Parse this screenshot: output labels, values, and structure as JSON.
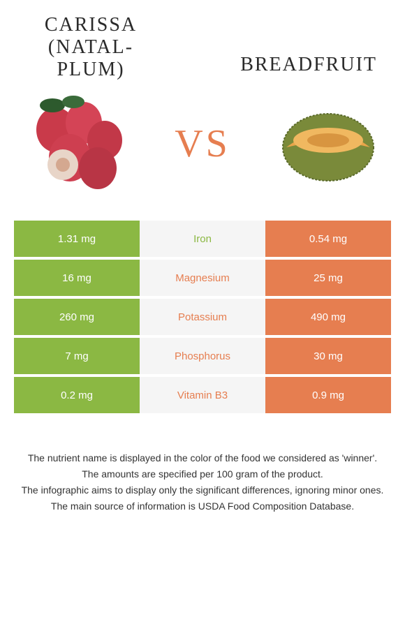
{
  "header": {
    "left_title": "CARISSA (NATAL-PLUM)",
    "right_title": "BREADFRUIT",
    "vs": "VS"
  },
  "colors": {
    "left": "#8bb843",
    "right": "#e67e50"
  },
  "rows": [
    {
      "nutrient": "Iron",
      "left": "1.31 mg",
      "right": "0.54 mg",
      "winner": "left"
    },
    {
      "nutrient": "Magnesium",
      "left": "16 mg",
      "right": "25 mg",
      "winner": "right"
    },
    {
      "nutrient": "Potassium",
      "left": "260 mg",
      "right": "490 mg",
      "winner": "right"
    },
    {
      "nutrient": "Phosphorus",
      "left": "7 mg",
      "right": "30 mg",
      "winner": "right"
    },
    {
      "nutrient": "Vitamin B3",
      "left": "0.2 mg",
      "right": "0.9 mg",
      "winner": "right"
    }
  ],
  "footer": {
    "line1": "The nutrient name is displayed in the color of the food we considered as 'winner'.",
    "line2": "The amounts are specified per 100 gram of the product.",
    "line3": "The infographic aims to display only the significant differences, ignoring minor ones.",
    "line4": "The main source of information is USDA Food Composition Database."
  }
}
